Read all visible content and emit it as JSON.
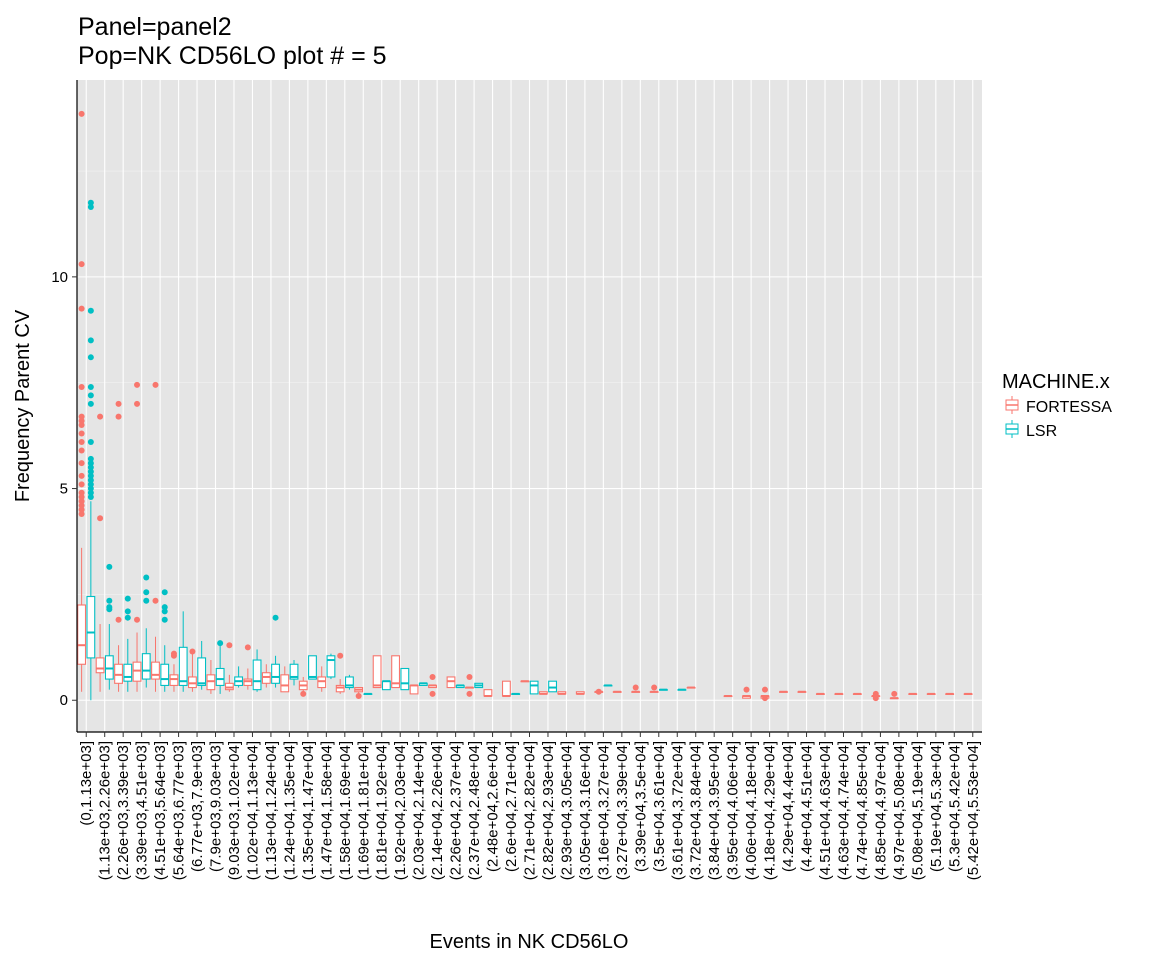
{
  "chart_data": {
    "type": "boxplot",
    "title_lines": [
      "Panel=panel2",
      "Pop=NK CD56LO plot # = 5"
    ],
    "xlabel": "Events in NK CD56LO",
    "ylabel": "Frequency Parent CV",
    "ylim": [
      -0.75,
      14.65
    ],
    "y_ticks": [
      0,
      5,
      10
    ],
    "grid": true,
    "legend": {
      "title": "MACHINE.x",
      "position": "right",
      "entries": [
        {
          "name": "FORTESSA",
          "color": "#F8766D"
        },
        {
          "name": "LSR",
          "color": "#00BFC4"
        }
      ]
    },
    "categories": [
      "(0,1.13e+03]",
      "(1.13e+03,2.26e+03]",
      "(2.26e+03,3.39e+03]",
      "(3.39e+03,4.51e+03]",
      "(4.51e+03,5.64e+03]",
      "(5.64e+03,6.77e+03]",
      "(6.77e+03,7.9e+03]",
      "(7.9e+03,9.03e+03]",
      "(9.03e+03,1.02e+04]",
      "(1.02e+04,1.13e+04]",
      "(1.13e+04,1.24e+04]",
      "(1.24e+04,1.35e+04]",
      "(1.35e+04,1.47e+04]",
      "(1.47e+04,1.58e+04]",
      "(1.58e+04,1.69e+04]",
      "(1.69e+04,1.81e+04]",
      "(1.81e+04,1.92e+04]",
      "(1.92e+04,2.03e+04]",
      "(2.03e+04,2.14e+04]",
      "(2.14e+04,2.26e+04]",
      "(2.26e+04,2.37e+04]",
      "(2.37e+04,2.48e+04]",
      "(2.48e+04,2.6e+04]",
      "(2.6e+04,2.71e+04]",
      "(2.71e+04,2.82e+04]",
      "(2.82e+04,2.93e+04]",
      "(2.93e+04,3.05e+04]",
      "(3.05e+04,3.16e+04]",
      "(3.16e+04,3.27e+04]",
      "(3.27e+04,3.39e+04]",
      "(3.39e+04,3.5e+04]",
      "(3.5e+04,3.61e+04]",
      "(3.61e+04,3.72e+04]",
      "(3.72e+04,3.84e+04]",
      "(3.84e+04,3.95e+04]",
      "(3.95e+04,4.06e+04]",
      "(4.06e+04,4.18e+04]",
      "(4.18e+04,4.29e+04]",
      "(4.29e+04,4.4e+04]",
      "(4.4e+04,4.51e+04]",
      "(4.51e+04,4.63e+04]",
      "(4.63e+04,4.74e+04]",
      "(4.74e+04,4.85e+04]",
      "(4.85e+04,4.97e+04]",
      "(4.97e+04,5.08e+04]",
      "(5.08e+04,5.19e+04]",
      "(5.19e+04,5.3e+04]",
      "(5.3e+04,5.42e+04]",
      "(5.42e+04,5.53e+04]"
    ],
    "series": [
      {
        "name": "FORTESSA",
        "color": "#F8766D",
        "boxes": [
          {
            "cat": 0,
            "lo": 0.2,
            "q1": 0.85,
            "med": 1.3,
            "q3": 2.25,
            "hi": 3.6,
            "outliers": [
              13.85,
              10.3,
              9.25,
              7.4,
              6.7,
              6.6,
              6.5,
              6.3,
              6.1,
              5.9,
              5.6,
              5.3,
              5.1,
              4.9,
              4.8,
              4.7,
              4.6,
              4.5,
              4.4
            ]
          },
          {
            "cat": 1,
            "lo": 0.2,
            "q1": 0.65,
            "med": 0.75,
            "q3": 1.0,
            "hi": 1.8,
            "outliers": [
              6.7,
              4.3
            ]
          },
          {
            "cat": 2,
            "lo": 0.2,
            "q1": 0.4,
            "med": 0.6,
            "q3": 0.85,
            "hi": 1.3,
            "outliers": [
              7.0,
              6.7,
              1.9
            ]
          },
          {
            "cat": 3,
            "lo": 0.2,
            "q1": 0.45,
            "med": 0.7,
            "q3": 0.9,
            "hi": 1.6,
            "outliers": [
              7.45,
              7.0,
              1.9
            ]
          },
          {
            "cat": 4,
            "lo": 0.2,
            "q1": 0.5,
            "med": 0.6,
            "q3": 0.9,
            "hi": 1.5,
            "outliers": [
              7.45,
              2.35
            ]
          },
          {
            "cat": 5,
            "lo": 0.2,
            "q1": 0.35,
            "med": 0.5,
            "q3": 0.6,
            "hi": 0.85,
            "outliers": [
              1.1,
              1.05
            ]
          },
          {
            "cat": 6,
            "lo": 0.2,
            "q1": 0.3,
            "med": 0.4,
            "q3": 0.55,
            "hi": 1.15,
            "outliers": [
              1.15
            ]
          },
          {
            "cat": 7,
            "lo": 0.15,
            "q1": 0.25,
            "med": 0.45,
            "q3": 0.6,
            "hi": 0.95,
            "outliers": []
          },
          {
            "cat": 8,
            "lo": 0.2,
            "q1": 0.25,
            "med": 0.3,
            "q3": 0.4,
            "hi": 0.6,
            "outliers": [
              1.3
            ]
          },
          {
            "cat": 9,
            "lo": 0.25,
            "q1": 0.35,
            "med": 0.45,
            "q3": 0.5,
            "hi": 0.75,
            "outliers": [
              1.25
            ]
          },
          {
            "cat": 10,
            "lo": 0.3,
            "q1": 0.4,
            "med": 0.55,
            "q3": 0.65,
            "hi": 0.85,
            "outliers": []
          },
          {
            "cat": 11,
            "lo": 0.2,
            "q1": 0.2,
            "med": 0.35,
            "q3": 0.6,
            "hi": 0.8,
            "outliers": []
          },
          {
            "cat": 12,
            "lo": 0.1,
            "q1": 0.25,
            "med": 0.35,
            "q3": 0.45,
            "hi": 0.55,
            "outliers": [
              0.15
            ]
          },
          {
            "cat": 13,
            "lo": 0.2,
            "q1": 0.3,
            "med": 0.45,
            "q3": 0.55,
            "hi": 0.8,
            "outliers": []
          },
          {
            "cat": 14,
            "lo": 0.15,
            "q1": 0.2,
            "med": 0.3,
            "q3": 0.35,
            "hi": 0.5,
            "outliers": [
              1.05
            ]
          },
          {
            "cat": 15,
            "lo": 0.15,
            "q1": 0.2,
            "med": 0.25,
            "q3": 0.3,
            "hi": 0.3,
            "outliers": [
              0.1
            ]
          },
          {
            "cat": 16,
            "lo": 0.3,
            "q1": 0.3,
            "med": 0.35,
            "q3": 1.05,
            "hi": 1.05,
            "outliers": []
          },
          {
            "cat": 17,
            "lo": 0.3,
            "q1": 0.3,
            "med": 0.4,
            "q3": 1.05,
            "hi": 1.05,
            "outliers": []
          },
          {
            "cat": 18,
            "lo": 0.15,
            "q1": 0.15,
            "med": 0.35,
            "q3": 0.35,
            "hi": 0.35,
            "outliers": []
          },
          {
            "cat": 19,
            "lo": 0.3,
            "q1": 0.3,
            "med": 0.35,
            "q3": 0.35,
            "hi": 0.35,
            "outliers": [
              0.55,
              0.15
            ]
          },
          {
            "cat": 20,
            "lo": 0.3,
            "q1": 0.3,
            "med": 0.45,
            "q3": 0.55,
            "hi": 0.55,
            "outliers": []
          },
          {
            "cat": 21,
            "lo": 0.3,
            "q1": 0.3,
            "med": 0.3,
            "q3": 0.3,
            "hi": 0.3,
            "outliers": [
              0.55,
              0.15
            ]
          },
          {
            "cat": 22,
            "lo": 0.1,
            "q1": 0.1,
            "med": 0.1,
            "q3": 0.25,
            "hi": 0.25,
            "outliers": []
          },
          {
            "cat": 23,
            "lo": 0.1,
            "q1": 0.1,
            "med": 0.1,
            "q3": 0.45,
            "hi": 0.45,
            "outliers": []
          },
          {
            "cat": 24,
            "lo": 0.45,
            "q1": 0.45,
            "med": 0.45,
            "q3": 0.45,
            "hi": 0.45,
            "outliers": []
          },
          {
            "cat": 25,
            "lo": 0.15,
            "q1": 0.15,
            "med": 0.15,
            "q3": 0.2,
            "hi": 0.2,
            "outliers": []
          },
          {
            "cat": 26,
            "lo": 0.15,
            "q1": 0.15,
            "med": 0.15,
            "q3": 0.2,
            "hi": 0.2,
            "outliers": []
          },
          {
            "cat": 27,
            "lo": 0.15,
            "q1": 0.15,
            "med": 0.15,
            "q3": 0.2,
            "hi": 0.2,
            "outliers": []
          },
          {
            "cat": 28,
            "lo": 0.2,
            "q1": 0.2,
            "med": 0.2,
            "q3": 0.2,
            "hi": 0.2,
            "outliers": [
              0.2
            ]
          },
          {
            "cat": 29,
            "lo": 0.2,
            "q1": 0.2,
            "med": 0.2,
            "q3": 0.2,
            "hi": 0.2,
            "outliers": []
          },
          {
            "cat": 30,
            "lo": 0.2,
            "q1": 0.2,
            "med": 0.2,
            "q3": 0.2,
            "hi": 0.2,
            "outliers": [
              0.3
            ]
          },
          {
            "cat": 31,
            "lo": 0.2,
            "q1": 0.2,
            "med": 0.2,
            "q3": 0.2,
            "hi": 0.2,
            "outliers": [
              0.3
            ]
          },
          {
            "cat": 33,
            "lo": 0.3,
            "q1": 0.3,
            "med": 0.3,
            "q3": 0.3,
            "hi": 0.3,
            "outliers": []
          },
          {
            "cat": 35,
            "lo": 0.1,
            "q1": 0.1,
            "med": 0.1,
            "q3": 0.1,
            "hi": 0.1,
            "outliers": []
          },
          {
            "cat": 36,
            "lo": 0.05,
            "q1": 0.05,
            "med": 0.1,
            "q3": 0.1,
            "hi": 0.1,
            "outliers": [
              0.25
            ]
          },
          {
            "cat": 37,
            "lo": 0.05,
            "q1": 0.05,
            "med": 0.1,
            "q3": 0.1,
            "hi": 0.1,
            "outliers": [
              0.25,
              0.05
            ]
          },
          {
            "cat": 38,
            "lo": 0.2,
            "q1": 0.2,
            "med": 0.2,
            "q3": 0.2,
            "hi": 0.2,
            "outliers": []
          },
          {
            "cat": 39,
            "lo": 0.2,
            "q1": 0.2,
            "med": 0.2,
            "q3": 0.2,
            "hi": 0.2,
            "outliers": []
          },
          {
            "cat": 40,
            "lo": 0.15,
            "q1": 0.15,
            "med": 0.15,
            "q3": 0.15,
            "hi": 0.15,
            "outliers": []
          },
          {
            "cat": 41,
            "lo": 0.15,
            "q1": 0.15,
            "med": 0.15,
            "q3": 0.15,
            "hi": 0.15,
            "outliers": []
          },
          {
            "cat": 42,
            "lo": 0.15,
            "q1": 0.15,
            "med": 0.15,
            "q3": 0.15,
            "hi": 0.15,
            "outliers": []
          },
          {
            "cat": 43,
            "lo": 0.1,
            "q1": 0.1,
            "med": 0.1,
            "q3": 0.1,
            "hi": 0.1,
            "outliers": [
              0.15,
              0.05
            ]
          },
          {
            "cat": 44,
            "lo": 0.05,
            "q1": 0.05,
            "med": 0.05,
            "q3": 0.05,
            "hi": 0.05,
            "outliers": [
              0.15
            ]
          },
          {
            "cat": 45,
            "lo": 0.15,
            "q1": 0.15,
            "med": 0.15,
            "q3": 0.15,
            "hi": 0.15,
            "outliers": []
          },
          {
            "cat": 46,
            "lo": 0.15,
            "q1": 0.15,
            "med": 0.15,
            "q3": 0.15,
            "hi": 0.15,
            "outliers": []
          },
          {
            "cat": 47,
            "lo": 0.15,
            "q1": 0.15,
            "med": 0.15,
            "q3": 0.15,
            "hi": 0.15,
            "outliers": []
          },
          {
            "cat": 48,
            "lo": 0.15,
            "q1": 0.15,
            "med": 0.15,
            "q3": 0.15,
            "hi": 0.15,
            "outliers": []
          }
        ]
      },
      {
        "name": "LSR",
        "color": "#00BFC4",
        "boxes": [
          {
            "cat": 0,
            "lo": 0.0,
            "q1": 1.0,
            "med": 1.6,
            "q3": 2.45,
            "hi": 4.7,
            "outliers": [
              11.75,
              11.65,
              9.2,
              8.5,
              8.1,
              7.4,
              7.2,
              7.0,
              6.1,
              5.7,
              5.6,
              5.5,
              5.4,
              5.3,
              5.2,
              5.1,
              5.0,
              4.9,
              4.8
            ]
          },
          {
            "cat": 1,
            "lo": 0.25,
            "q1": 0.5,
            "med": 0.75,
            "q3": 1.05,
            "hi": 1.8,
            "outliers": [
              3.15,
              2.35,
              2.2,
              2.15
            ]
          },
          {
            "cat": 2,
            "lo": 0.2,
            "q1": 0.45,
            "med": 0.55,
            "q3": 0.85,
            "hi": 1.45,
            "outliers": [
              2.4,
              2.1,
              1.95
            ]
          },
          {
            "cat": 3,
            "lo": 0.3,
            "q1": 0.5,
            "med": 0.7,
            "q3": 1.1,
            "hi": 1.7,
            "outliers": [
              2.9,
              2.55,
              2.35
            ]
          },
          {
            "cat": 4,
            "lo": 0.2,
            "q1": 0.35,
            "med": 0.5,
            "q3": 0.85,
            "hi": 1.3,
            "outliers": [
              2.55,
              2.2,
              2.1,
              1.9
            ]
          },
          {
            "cat": 5,
            "lo": 0.2,
            "q1": 0.35,
            "med": 0.45,
            "q3": 1.25,
            "hi": 2.1,
            "outliers": []
          },
          {
            "cat": 6,
            "lo": 0.25,
            "q1": 0.35,
            "med": 0.4,
            "q3": 1.0,
            "hi": 1.4,
            "outliers": []
          },
          {
            "cat": 7,
            "lo": 0.15,
            "q1": 0.35,
            "med": 0.5,
            "q3": 0.75,
            "hi": 1.4,
            "outliers": [
              1.35
            ]
          },
          {
            "cat": 8,
            "lo": 0.3,
            "q1": 0.35,
            "med": 0.45,
            "q3": 0.55,
            "hi": 0.8,
            "outliers": []
          },
          {
            "cat": 9,
            "lo": 0.2,
            "q1": 0.25,
            "med": 0.45,
            "q3": 0.95,
            "hi": 1.2,
            "outliers": []
          },
          {
            "cat": 10,
            "lo": 0.3,
            "q1": 0.4,
            "med": 0.55,
            "q3": 0.85,
            "hi": 1.05,
            "outliers": [
              1.95
            ]
          },
          {
            "cat": 11,
            "lo": 0.35,
            "q1": 0.5,
            "med": 0.55,
            "q3": 0.85,
            "hi": 0.95,
            "outliers": []
          },
          {
            "cat": 12,
            "lo": 0.5,
            "q1": 0.5,
            "med": 0.55,
            "q3": 1.05,
            "hi": 1.05,
            "outliers": []
          },
          {
            "cat": 13,
            "lo": 0.5,
            "q1": 0.55,
            "med": 0.95,
            "q3": 1.05,
            "hi": 1.1,
            "outliers": []
          },
          {
            "cat": 14,
            "lo": 0.25,
            "q1": 0.3,
            "med": 0.35,
            "q3": 0.55,
            "hi": 0.6,
            "outliers": []
          },
          {
            "cat": 15,
            "lo": 0.15,
            "q1": 0.15,
            "med": 0.15,
            "q3": 0.15,
            "hi": 0.15,
            "outliers": []
          },
          {
            "cat": 16,
            "lo": 0.25,
            "q1": 0.25,
            "med": 0.45,
            "q3": 0.45,
            "hi": 0.45,
            "outliers": []
          },
          {
            "cat": 17,
            "lo": 0.25,
            "q1": 0.25,
            "med": 0.4,
            "q3": 0.75,
            "hi": 0.75,
            "outliers": []
          },
          {
            "cat": 18,
            "lo": 0.35,
            "q1": 0.35,
            "med": 0.4,
            "q3": 0.4,
            "hi": 0.4,
            "outliers": []
          },
          {
            "cat": 20,
            "lo": 0.3,
            "q1": 0.3,
            "med": 0.35,
            "q3": 0.35,
            "hi": 0.35,
            "outliers": []
          },
          {
            "cat": 21,
            "lo": 0.3,
            "q1": 0.3,
            "med": 0.35,
            "q3": 0.4,
            "hi": 0.4,
            "outliers": []
          },
          {
            "cat": 23,
            "lo": 0.15,
            "q1": 0.15,
            "med": 0.15,
            "q3": 0.15,
            "hi": 0.15,
            "outliers": []
          },
          {
            "cat": 24,
            "lo": 0.15,
            "q1": 0.15,
            "med": 0.35,
            "q3": 0.45,
            "hi": 0.45,
            "outliers": []
          },
          {
            "cat": 25,
            "lo": 0.2,
            "q1": 0.2,
            "med": 0.3,
            "q3": 0.45,
            "hi": 0.45,
            "outliers": []
          },
          {
            "cat": 28,
            "lo": 0.35,
            "q1": 0.35,
            "med": 0.35,
            "q3": 0.35,
            "hi": 0.35,
            "outliers": []
          },
          {
            "cat": 31,
            "lo": 0.25,
            "q1": 0.25,
            "med": 0.25,
            "q3": 0.25,
            "hi": 0.25,
            "outliers": []
          },
          {
            "cat": 32,
            "lo": 0.25,
            "q1": 0.25,
            "med": 0.25,
            "q3": 0.25,
            "hi": 0.25,
            "outliers": []
          }
        ]
      }
    ]
  }
}
